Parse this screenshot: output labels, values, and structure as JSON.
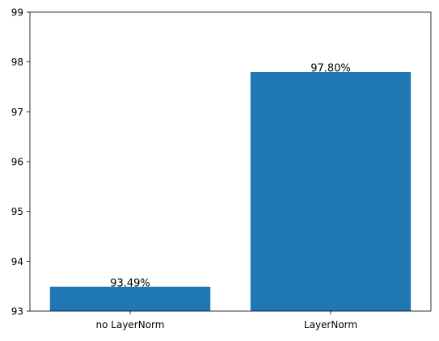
{
  "chart_data": {
    "type": "bar",
    "categories": [
      "no LayerNorm",
      "LayerNorm"
    ],
    "values": [
      93.49,
      97.8
    ],
    "data_labels": [
      "93.49%",
      "97.80%"
    ],
    "title": "",
    "xlabel": "",
    "ylabel": "",
    "ylim": [
      93,
      99
    ],
    "yticks": [
      "93",
      "94",
      "95",
      "96",
      "97",
      "98",
      "99"
    ],
    "bar_color": "#1f77b4",
    "grid": false,
    "legend": "none"
  }
}
